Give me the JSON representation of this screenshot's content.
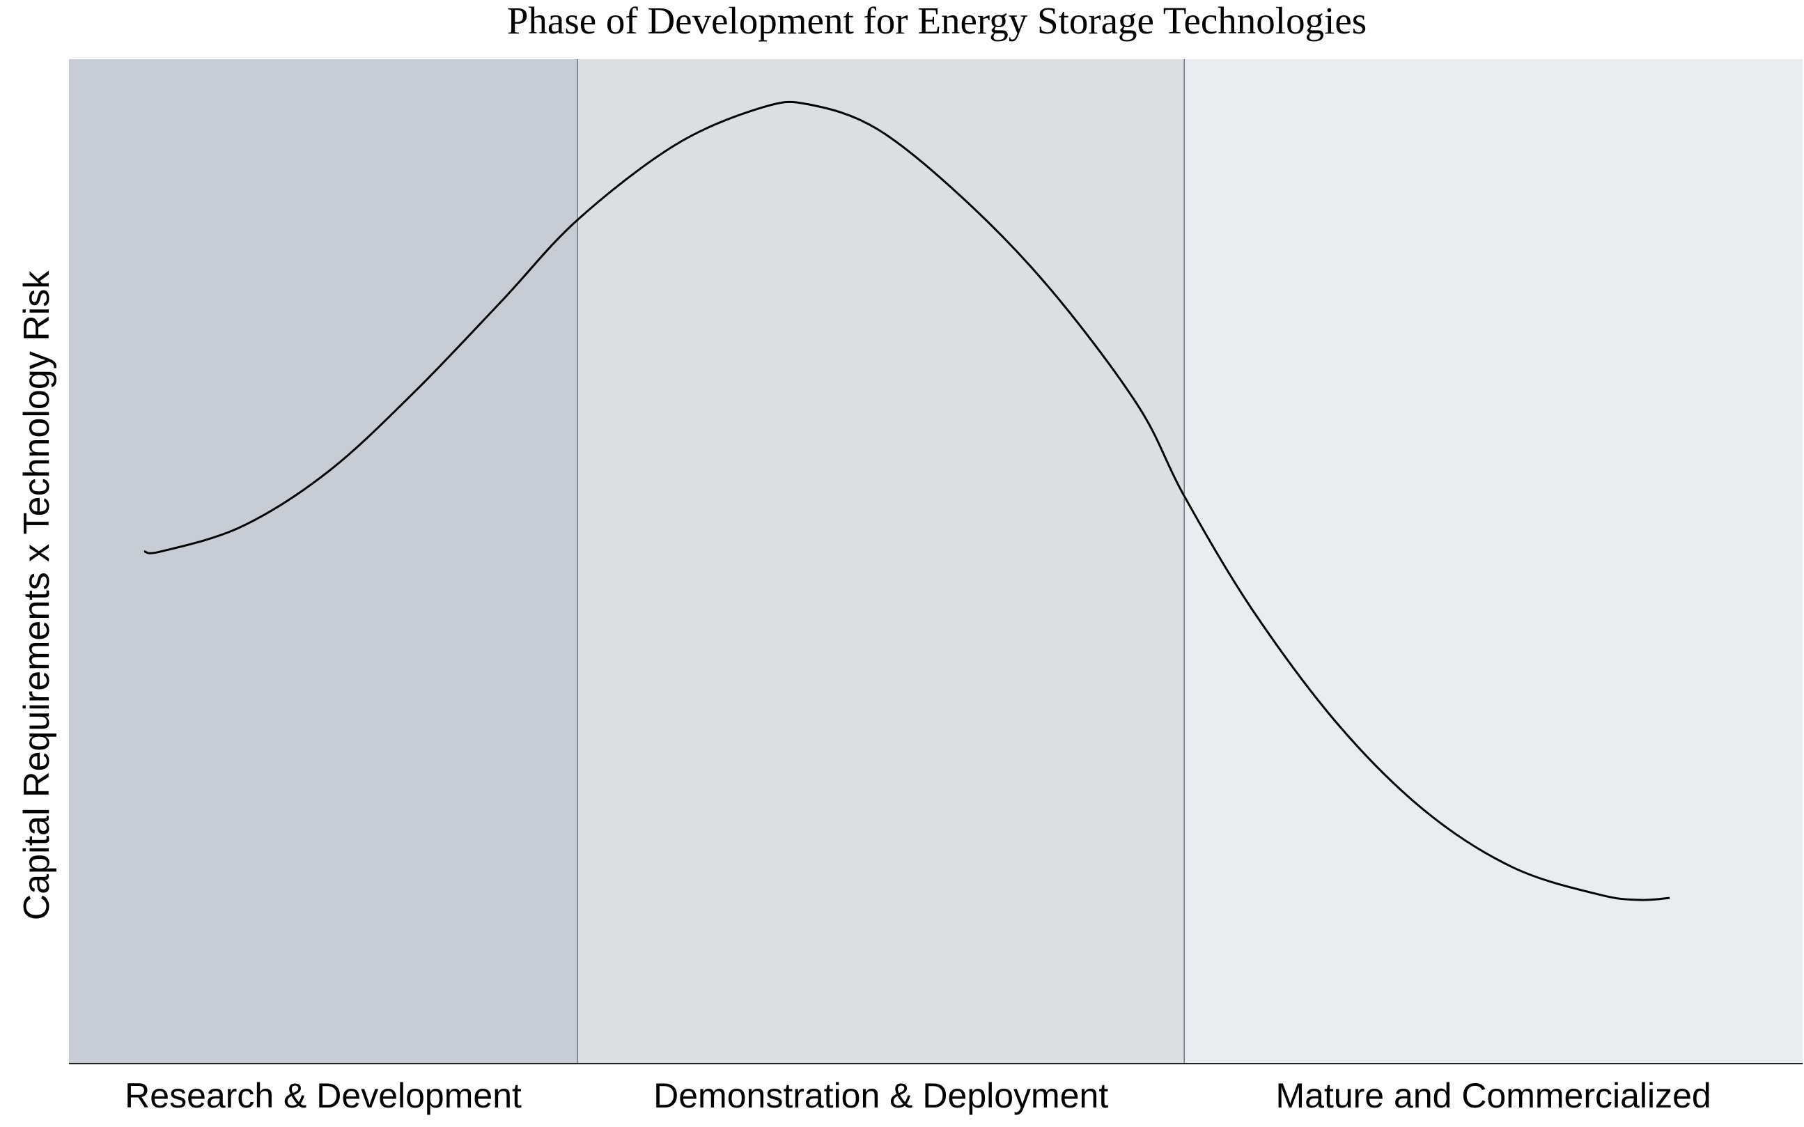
{
  "colors": {
    "background": "#ffffff",
    "curve": "#000000",
    "axis": "#222222",
    "divider": "#6b7585"
  },
  "chart_data": {
    "type": "line",
    "title": "Phase of Development for Energy Storage Technologies",
    "xlabel": "",
    "ylabel": "Capital Requirements x Technology Risk",
    "grid": false,
    "legend": "none",
    "x_ticks_shown": false,
    "y_ticks_shown": false,
    "xlim": [
      0,
      3
    ],
    "ylim": [
      0,
      1
    ],
    "phases": [
      {
        "label": "Research & Development",
        "start": 0,
        "end": 0.88,
        "color": "#c8cdd5"
      },
      {
        "label": "Demonstration & Deployment",
        "start": 0.88,
        "end": 1.93,
        "color": "#dbdfe2"
      },
      {
        "label": "Mature and Commercialized",
        "start": 1.93,
        "end": 3,
        "color": "#e9edef"
      }
    ],
    "series": [
      {
        "name": "",
        "x": [
          0.13,
          0.16,
          0.3,
          0.45,
          0.6,
          0.75,
          0.88,
          1.05,
          1.2,
          1.28,
          1.4,
          1.55,
          1.7,
          1.85,
          1.93,
          2.05,
          2.2,
          2.35,
          2.5,
          2.65,
          2.72,
          2.77
        ],
        "y": [
          0.51,
          0.51,
          0.535,
          0.59,
          0.67,
          0.76,
          0.84,
          0.915,
          0.952,
          0.955,
          0.93,
          0.86,
          0.77,
          0.655,
          0.565,
          0.45,
          0.335,
          0.25,
          0.195,
          0.168,
          0.163,
          0.165
        ]
      }
    ]
  }
}
